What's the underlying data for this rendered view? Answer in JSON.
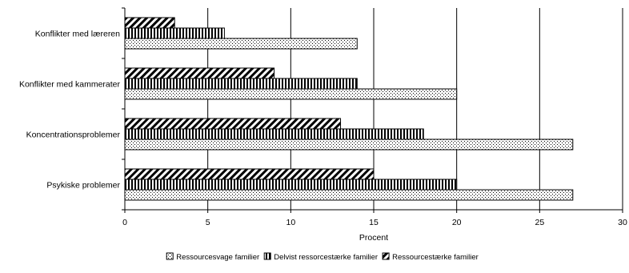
{
  "chart_data": {
    "type": "bar",
    "orientation": "horizontal",
    "title": "",
    "xlabel": "Procent",
    "ylabel": "",
    "xlim": [
      0,
      30
    ],
    "xticks": [
      0,
      5,
      10,
      15,
      20,
      25,
      30
    ],
    "grid": "vertical major gridlines",
    "legend_position": "bottom",
    "categories": [
      "Konflikter med læreren",
      "Konflikter med kammerater",
      "Koncentrationsproblemer",
      "Psykiske problemer"
    ],
    "series": [
      {
        "name": "Ressourcesvage familier",
        "pattern": "dots",
        "values": [
          14,
          20,
          27,
          27
        ]
      },
      {
        "name": "Delvist ressorcestærke familier",
        "pattern": "vertical-stripes",
        "values": [
          6,
          14,
          18,
          20
        ]
      },
      {
        "name": "Ressourcestærke familier",
        "pattern": "diagonal-stripes",
        "values": [
          3,
          9,
          13,
          15
        ]
      }
    ]
  }
}
